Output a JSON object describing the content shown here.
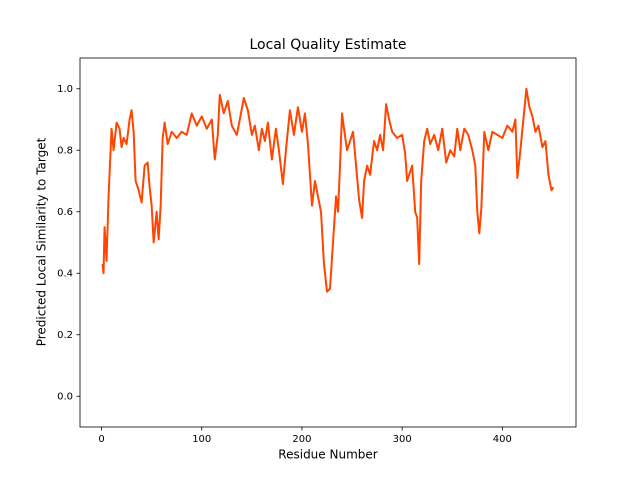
{
  "chart_data": {
    "type": "line",
    "title": "Local Quality Estimate",
    "x_label": "Residue Number",
    "y_label": "Predicted Local Similarity to Target",
    "xlim": [
      -21.5,
      473.5
    ],
    "ylim": [
      -0.1,
      1.1
    ],
    "xticks": [
      0,
      100,
      200,
      300,
      400
    ],
    "yticks": [
      {
        "value": 0,
        "label": "0.0"
      },
      0.2,
      0.4,
      0.6,
      0.8,
      {
        "value": 1,
        "label": "1.0"
      }
    ],
    "grid": false,
    "x": [
      1,
      2,
      3,
      5,
      7,
      10,
      12,
      15,
      18,
      20,
      22,
      25,
      28,
      30,
      32,
      34,
      37,
      40,
      43,
      46,
      48,
      50,
      52,
      55,
      57,
      59,
      61,
      63,
      66,
      70,
      75,
      80,
      85,
      90,
      95,
      100,
      105,
      110,
      113,
      116,
      118,
      122,
      126,
      130,
      135,
      138,
      142,
      146,
      150,
      153,
      157,
      160,
      163,
      166,
      170,
      174,
      177,
      181,
      184,
      188,
      192,
      196,
      200,
      203,
      206,
      210,
      213,
      216,
      219,
      222,
      225,
      228,
      232,
      234,
      236,
      238,
      240,
      242,
      245,
      248,
      251,
      254,
      257,
      260,
      262,
      265,
      268,
      272,
      275,
      278,
      281,
      284,
      287,
      290,
      295,
      300,
      303,
      305,
      307,
      310,
      313,
      315,
      317,
      319,
      322,
      325,
      328,
      332,
      336,
      340,
      344,
      348,
      352,
      355,
      358,
      362,
      366,
      370,
      373,
      375,
      377,
      379,
      382,
      386,
      390,
      395,
      400,
      405,
      410,
      413,
      415,
      418,
      421,
      424,
      427,
      430,
      433,
      436,
      440,
      443,
      446,
      449,
      451
    ],
    "series": [
      {
        "color": "#ff4500",
        "values": [
          0.43,
          0.4,
          0.55,
          0.44,
          0.65,
          0.87,
          0.8,
          0.89,
          0.87,
          0.81,
          0.84,
          0.82,
          0.9,
          0.93,
          0.86,
          0.7,
          0.67,
          0.63,
          0.75,
          0.76,
          0.68,
          0.62,
          0.5,
          0.6,
          0.51,
          0.62,
          0.84,
          0.89,
          0.82,
          0.86,
          0.84,
          0.86,
          0.85,
          0.92,
          0.88,
          0.91,
          0.87,
          0.9,
          0.77,
          0.85,
          0.98,
          0.92,
          0.96,
          0.88,
          0.85,
          0.9,
          0.97,
          0.93,
          0.85,
          0.88,
          0.8,
          0.87,
          0.83,
          0.89,
          0.77,
          0.87,
          0.8,
          0.69,
          0.8,
          0.93,
          0.85,
          0.94,
          0.86,
          0.92,
          0.82,
          0.62,
          0.7,
          0.65,
          0.6,
          0.43,
          0.34,
          0.35,
          0.55,
          0.65,
          0.6,
          0.75,
          0.92,
          0.87,
          0.8,
          0.83,
          0.86,
          0.75,
          0.64,
          0.58,
          0.7,
          0.75,
          0.72,
          0.83,
          0.8,
          0.85,
          0.8,
          0.95,
          0.9,
          0.86,
          0.84,
          0.85,
          0.79,
          0.7,
          0.72,
          0.75,
          0.6,
          0.58,
          0.43,
          0.7,
          0.83,
          0.87,
          0.82,
          0.85,
          0.8,
          0.87,
          0.76,
          0.8,
          0.78,
          0.87,
          0.8,
          0.87,
          0.85,
          0.8,
          0.75,
          0.6,
          0.53,
          0.61,
          0.86,
          0.8,
          0.86,
          0.85,
          0.84,
          0.88,
          0.86,
          0.9,
          0.71,
          0.8,
          0.9,
          1.0,
          0.94,
          0.91,
          0.86,
          0.88,
          0.81,
          0.83,
          0.72,
          0.67,
          0.68
        ]
      }
    ]
  }
}
